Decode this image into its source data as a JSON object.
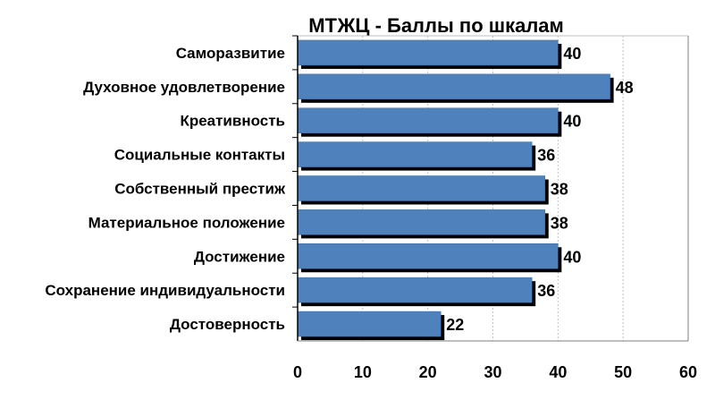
{
  "chart_data": {
    "type": "bar",
    "orientation": "horizontal",
    "title": "МТЖЦ - Баллы по шкалам",
    "categories": [
      "Саморазвитие",
      "Духовное удовлетворение",
      "Креативность",
      "Социальные контакты",
      "Собственный престиж",
      "Материальное положение",
      "Достижение",
      "Сохранение индивидуальности",
      "Достоверность"
    ],
    "values": [
      40,
      48,
      40,
      36,
      38,
      38,
      40,
      36,
      22
    ],
    "value_labels": [
      "40",
      "48",
      "40",
      "36",
      "38",
      "38",
      "40",
      "36",
      "22"
    ],
    "xlim": [
      0,
      60
    ],
    "x_ticks": [
      0,
      10,
      20,
      30,
      40,
      50,
      60
    ],
    "x_tick_labels": [
      "0",
      "10",
      "20",
      "30",
      "40",
      "50",
      "60"
    ],
    "grid": "vertical-dashed",
    "bar_color": "#4f81bd",
    "shadow_color": "#000000",
    "text_color": "#000000",
    "grid_color": "#bfbfbf"
  }
}
